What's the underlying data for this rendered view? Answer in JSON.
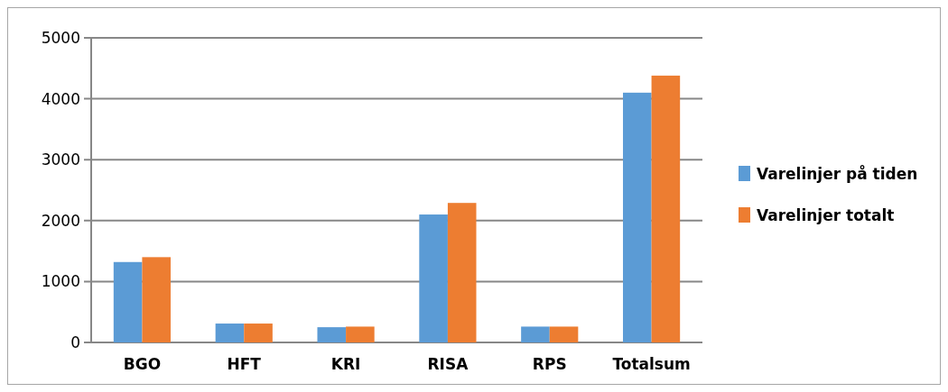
{
  "chart_data": {
    "type": "bar",
    "categories": [
      "BGO",
      "HFT",
      "KRI",
      "RISA",
      "RPS",
      "Totalsum"
    ],
    "series": [
      {
        "name": "Varelinjer på tiden",
        "color": "#5b9bd5",
        "values": [
          1320,
          310,
          250,
          2100,
          260,
          4100
        ]
      },
      {
        "name": "Varelinjer totalt",
        "color": "#ed7d31",
        "values": [
          1400,
          310,
          260,
          2290,
          260,
          4380
        ]
      }
    ],
    "ylim": [
      0,
      5000
    ],
    "yticks": [
      0,
      1000,
      2000,
      3000,
      4000,
      5000
    ],
    "grid": "y",
    "legend": "right"
  }
}
